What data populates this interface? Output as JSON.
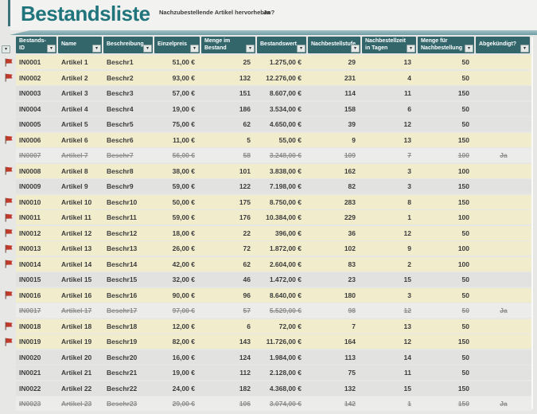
{
  "title": "Bestandsliste",
  "toolbar": {
    "highlight_label": "Nachzubestellende Artikel hervorheben?",
    "highlight_value": "Ja"
  },
  "table": {
    "columns": [
      "Bestands-ID",
      "Name",
      "Beschreibung",
      "Einzelpreis",
      "Menge im Bestand",
      "Bestandswert",
      "Nachbestellstufe",
      "Nachbestellzeit in Tagen",
      "Menge für Nachbestellung",
      "Abgekündigt?"
    ],
    "rows": [
      {
        "cells": [
          "IN0001",
          "Artikel 1",
          "Beschr1",
          "51,00 €",
          "25",
          "1.275,00 €",
          "29",
          "13",
          "50",
          ""
        ],
        "flagged": true,
        "discontinued": false
      },
      {
        "cells": [
          "IN0002",
          "Artikel 2",
          "Beschr2",
          "93,00 €",
          "132",
          "12.276,00 €",
          "231",
          "4",
          "50",
          ""
        ],
        "flagged": true,
        "discontinued": false
      },
      {
        "cells": [
          "IN0003",
          "Artikel 3",
          "Beschr3",
          "57,00 €",
          "151",
          "8.607,00 €",
          "114",
          "11",
          "150",
          ""
        ],
        "flagged": false,
        "discontinued": false
      },
      {
        "cells": [
          "IN0004",
          "Artikel 4",
          "Beschr4",
          "19,00 €",
          "186",
          "3.534,00 €",
          "158",
          "6",
          "50",
          ""
        ],
        "flagged": false,
        "discontinued": false
      },
      {
        "cells": [
          "IN0005",
          "Artikel 5",
          "Beschr5",
          "75,00 €",
          "62",
          "4.650,00 €",
          "39",
          "12",
          "50",
          ""
        ],
        "flagged": false,
        "discontinued": false
      },
      {
        "cells": [
          "IN0006",
          "Artikel 6",
          "Beschr6",
          "11,00 €",
          "5",
          "55,00 €",
          "9",
          "13",
          "150",
          ""
        ],
        "flagged": true,
        "discontinued": false
      },
      {
        "cells": [
          "IN0007",
          "Artikel 7",
          "Beschr7",
          "56,00 €",
          "58",
          "3.248,00 €",
          "109",
          "7",
          "100",
          "Ja"
        ],
        "flagged": false,
        "discontinued": true
      },
      {
        "cells": [
          "IN0008",
          "Artikel 8",
          "Beschr8",
          "38,00 €",
          "101",
          "3.838,00 €",
          "162",
          "3",
          "100",
          ""
        ],
        "flagged": true,
        "discontinued": false
      },
      {
        "cells": [
          "IN0009",
          "Artikel 9",
          "Beschr9",
          "59,00 €",
          "122",
          "7.198,00 €",
          "82",
          "3",
          "150",
          ""
        ],
        "flagged": false,
        "discontinued": false
      },
      {
        "cells": [
          "IN0010",
          "Artikel 10",
          "Beschr10",
          "50,00 €",
          "175",
          "8.750,00 €",
          "283",
          "8",
          "150",
          ""
        ],
        "flagged": true,
        "discontinued": false
      },
      {
        "cells": [
          "IN0011",
          "Artikel 11",
          "Beschr11",
          "59,00 €",
          "176",
          "10.384,00 €",
          "229",
          "1",
          "100",
          ""
        ],
        "flagged": true,
        "discontinued": false
      },
      {
        "cells": [
          "IN0012",
          "Artikel 12",
          "Beschr12",
          "18,00 €",
          "22",
          "396,00 €",
          "36",
          "12",
          "50",
          ""
        ],
        "flagged": true,
        "discontinued": false
      },
      {
        "cells": [
          "IN0013",
          "Artikel 13",
          "Beschr13",
          "26,00 €",
          "72",
          "1.872,00 €",
          "102",
          "9",
          "100",
          ""
        ],
        "flagged": true,
        "discontinued": false
      },
      {
        "cells": [
          "IN0014",
          "Artikel 14",
          "Beschr14",
          "42,00 €",
          "62",
          "2.604,00 €",
          "83",
          "2",
          "100",
          ""
        ],
        "flagged": true,
        "discontinued": false
      },
      {
        "cells": [
          "IN0015",
          "Artikel 15",
          "Beschr15",
          "32,00 €",
          "46",
          "1.472,00 €",
          "23",
          "15",
          "50",
          ""
        ],
        "flagged": false,
        "discontinued": false
      },
      {
        "cells": [
          "IN0016",
          "Artikel 16",
          "Beschr16",
          "90,00 €",
          "96",
          "8.640,00 €",
          "180",
          "3",
          "50",
          ""
        ],
        "flagged": true,
        "discontinued": false
      },
      {
        "cells": [
          "IN0017",
          "Artikel 17",
          "Beschr17",
          "97,00 €",
          "57",
          "5.529,00 €",
          "98",
          "12",
          "50",
          "Ja"
        ],
        "flagged": false,
        "discontinued": true
      },
      {
        "cells": [
          "IN0018",
          "Artikel 18",
          "Beschr18",
          "12,00 €",
          "6",
          "72,00 €",
          "7",
          "13",
          "50",
          ""
        ],
        "flagged": true,
        "discontinued": false
      },
      {
        "cells": [
          "IN0019",
          "Artikel 19",
          "Beschr19",
          "82,00 €",
          "143",
          "11.726,00 €",
          "164",
          "12",
          "150",
          ""
        ],
        "flagged": true,
        "discontinued": false
      },
      {
        "cells": [
          "IN0020",
          "Artikel 20",
          "Beschr20",
          "16,00 €",
          "124",
          "1.984,00 €",
          "113",
          "14",
          "50",
          ""
        ],
        "flagged": false,
        "discontinued": false
      },
      {
        "cells": [
          "IN0021",
          "Artikel 21",
          "Beschr21",
          "19,00 €",
          "112",
          "2.128,00 €",
          "75",
          "11",
          "50",
          ""
        ],
        "flagged": false,
        "discontinued": false
      },
      {
        "cells": [
          "IN0022",
          "Artikel 22",
          "Beschr22",
          "24,00 €",
          "182",
          "4.368,00 €",
          "132",
          "15",
          "150",
          ""
        ],
        "flagged": false,
        "discontinued": false
      },
      {
        "cells": [
          "IN0023",
          "Artikel 23",
          "Beschr23",
          "29,00 €",
          "106",
          "3.074,00 €",
          "142",
          "1",
          "150",
          "Ja"
        ],
        "flagged": false,
        "discontinued": true
      }
    ]
  },
  "icons": {
    "filter_dropdown": "chevron-down",
    "reorder_flag": "red-flag"
  },
  "colors": {
    "title_teal": "#20747C",
    "header_teal": "#32666B",
    "ribbon_teal": "#6E9DA4",
    "highlight_row": "#F1ECCC",
    "normal_row": "#E2E2E1",
    "discontinued_row": "#ECECEB",
    "flag_red": "#C03A2B"
  }
}
